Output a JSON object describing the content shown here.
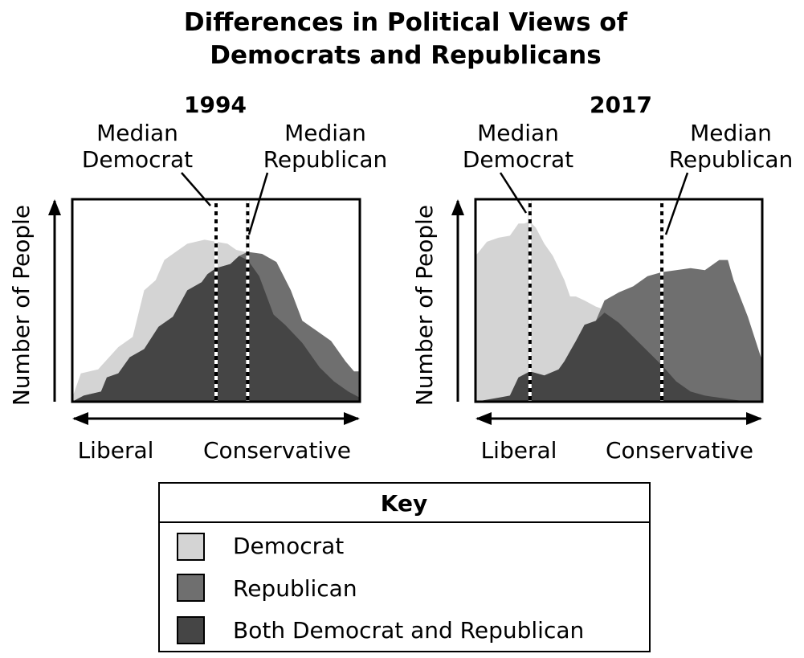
{
  "title_line1": "Differences in Political Views of",
  "title_line2": "Democrats and Republicans",
  "colors": {
    "democrat": "#d4d4d4",
    "republican": "#6f6f6f",
    "both": "#454545"
  },
  "chart_data": [
    {
      "type": "area",
      "title": "1994",
      "xlabel_left": "Liberal",
      "xlabel_right": "Conservative",
      "ylabel": "Number of People",
      "x_range": [
        0,
        100
      ],
      "y_range": [
        0,
        100
      ],
      "median_democrat_label": [
        "Median",
        "Democrat"
      ],
      "median_republican_label": [
        "Median",
        "Republican"
      ],
      "median_democrat_x": 50,
      "median_republican_x": 61,
      "series": [
        {
          "name": "Democrat",
          "x": [
            0,
            3,
            9,
            16,
            21,
            25,
            29,
            32,
            35,
            40,
            46,
            50,
            54,
            57,
            60,
            66,
            70,
            74,
            80,
            86,
            91,
            96,
            100
          ],
          "y": [
            2,
            14,
            16,
            27,
            32,
            55,
            60,
            70,
            73,
            78,
            80,
            79,
            78,
            75,
            74,
            70,
            57,
            38,
            29,
            17,
            10,
            5,
            2
          ]
        },
        {
          "name": "Republican",
          "x": [
            0,
            4,
            10,
            12,
            16,
            20,
            25,
            30,
            35,
            40,
            45,
            47,
            50,
            55,
            58,
            61,
            66,
            71,
            76,
            80,
            85,
            90,
            95,
            98,
            100
          ],
          "y": [
            0,
            3,
            5,
            12,
            14,
            22,
            26,
            37,
            42,
            55,
            59,
            63,
            66,
            68,
            72,
            74,
            73,
            69,
            55,
            40,
            35,
            30,
            20,
            15,
            15
          ]
        },
        {
          "name": "Both Democrat and Republican",
          "x": [
            0,
            4,
            10,
            12,
            16,
            20,
            25,
            30,
            35,
            40,
            45,
            47,
            50,
            55,
            58,
            61,
            65,
            70,
            74,
            80,
            86,
            91,
            96,
            100
          ],
          "y": [
            0,
            3,
            5,
            12,
            14,
            22,
            26,
            37,
            42,
            55,
            59,
            63,
            66,
            68,
            72,
            70,
            62,
            43,
            38,
            29,
            17,
            10,
            5,
            2
          ]
        }
      ]
    },
    {
      "type": "area",
      "title": "2017",
      "xlabel_left": "Liberal",
      "xlabel_right": "Conservative",
      "ylabel": "Number of People",
      "x_range": [
        0,
        100
      ],
      "y_range": [
        0,
        100
      ],
      "median_democrat_label": [
        "Median",
        "Democrat"
      ],
      "median_republican_label": [
        "Median",
        "Republican"
      ],
      "median_democrat_x": 19,
      "median_republican_x": 65,
      "series": [
        {
          "name": "Democrat",
          "x": [
            0,
            4,
            8,
            12,
            15,
            17,
            19,
            21,
            24,
            27,
            31,
            33,
            35,
            38,
            42,
            46,
            50,
            55,
            60,
            65,
            70,
            75,
            80,
            85,
            90,
            95,
            100
          ],
          "y": [
            72,
            79,
            81,
            82,
            88,
            88,
            89,
            86,
            78,
            72,
            60,
            52,
            52,
            50,
            47,
            45,
            42,
            37,
            30,
            18,
            10,
            5,
            3,
            2,
            1,
            0,
            0
          ]
        },
        {
          "name": "Republican",
          "x": [
            0,
            5,
            10,
            15,
            20,
            25,
            30,
            35,
            40,
            42,
            45,
            50,
            55,
            60,
            65,
            70,
            75,
            80,
            85,
            88,
            90,
            95,
            100
          ],
          "y": [
            0,
            1,
            2,
            3,
            5,
            8,
            12,
            18,
            30,
            40,
            50,
            54,
            57,
            62,
            64,
            65,
            66,
            65,
            70,
            70,
            60,
            42,
            20
          ]
        },
        {
          "name": "Both Democrat and Republican",
          "x": [
            0,
            4,
            8,
            12,
            15,
            19,
            24,
            29,
            31,
            33,
            35,
            38,
            42,
            45,
            50,
            55,
            60,
            65,
            70,
            75,
            80,
            85,
            90,
            95,
            100
          ],
          "y": [
            0,
            1,
            2,
            3,
            12,
            15,
            13,
            16,
            20,
            25,
            30,
            38,
            40,
            44,
            39,
            32,
            25,
            18,
            10,
            5,
            3,
            2,
            1,
            0,
            0
          ]
        }
      ]
    }
  ],
  "key": {
    "heading": "Key",
    "items": [
      {
        "label": "Democrat",
        "color": "#d4d4d4"
      },
      {
        "label": "Republican",
        "color": "#6f6f6f"
      },
      {
        "label": "Both Democrat and Republican",
        "color": "#454545"
      }
    ]
  }
}
